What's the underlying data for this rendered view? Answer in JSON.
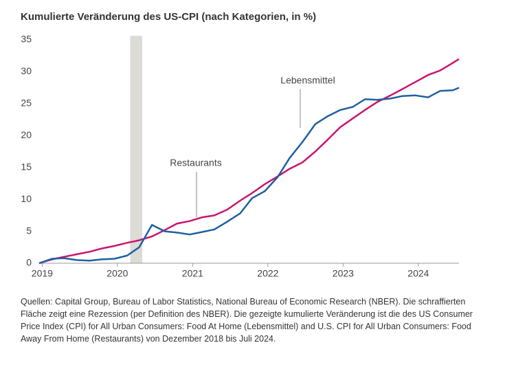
{
  "chart_data": {
    "type": "line",
    "title": "Kumulierte Veränderung des US-CPI (nach Kategorien, in %)",
    "x": [
      2018.96,
      2019.13,
      2019.29,
      2019.46,
      2019.63,
      2019.79,
      2019.96,
      2020.13,
      2020.29,
      2020.46,
      2020.63,
      2020.79,
      2020.96,
      2021.13,
      2021.29,
      2021.46,
      2021.63,
      2021.79,
      2021.96,
      2022.13,
      2022.29,
      2022.46,
      2022.63,
      2022.79,
      2022.96,
      2023.13,
      2023.29,
      2023.46,
      2023.63,
      2023.79,
      2023.96,
      2024.13,
      2024.29,
      2024.46,
      2024.54
    ],
    "series": [
      {
        "name": "Restaurants",
        "color": "#c8146e",
        "values": [
          0,
          0.6,
          1.0,
          1.4,
          1.8,
          2.3,
          2.7,
          3.2,
          3.6,
          4.2,
          5.2,
          6.2,
          6.6,
          7.2,
          7.5,
          8.4,
          9.8,
          11.0,
          12.4,
          13.6,
          14.8,
          15.8,
          17.5,
          19.3,
          21.3,
          22.7,
          24.0,
          25.3,
          26.3,
          27.3,
          28.4,
          29.5,
          30.2,
          31.4,
          32.0
        ]
      },
      {
        "name": "Lebensmittel",
        "color": "#1f5fa0",
        "values": [
          0,
          0.7,
          0.8,
          0.5,
          0.4,
          0.6,
          0.7,
          1.2,
          2.5,
          6.0,
          5.0,
          4.8,
          4.5,
          4.9,
          5.3,
          6.5,
          7.8,
          10.2,
          11.3,
          13.5,
          16.5,
          19.0,
          21.8,
          23.0,
          24.0,
          24.5,
          25.7,
          25.6,
          25.8,
          26.2,
          26.3,
          26.0,
          27.0,
          27.1,
          27.5
        ]
      }
    ],
    "recession": {
      "start": 2020.17,
      "end": 2020.33
    },
    "xlim": [
      2018.96,
      2024.54
    ],
    "xticks": [
      2019,
      2020,
      2021,
      2022,
      2023,
      2024
    ],
    "ylim": [
      0,
      35
    ],
    "yticks": [
      0,
      5,
      10,
      15,
      20,
      25,
      30,
      35
    ],
    "footnote": "Quellen: Capital Group, Bureau of Labor Statistics, National Bureau of Economic Research (NBER). Die schraffierten Fläche zeigt eine Rezession (per Definition des NBER). Die gezeigte kumulierte Veränderung ist die des US Consumer Price Index (CPI) for All Urban Consumers: Food At Home (Lebensmittel) and U.S. CPI for All Urban Consumers: Food Away From Home (Restaurants) von Dezember 2018 bis Juli 2024."
  }
}
